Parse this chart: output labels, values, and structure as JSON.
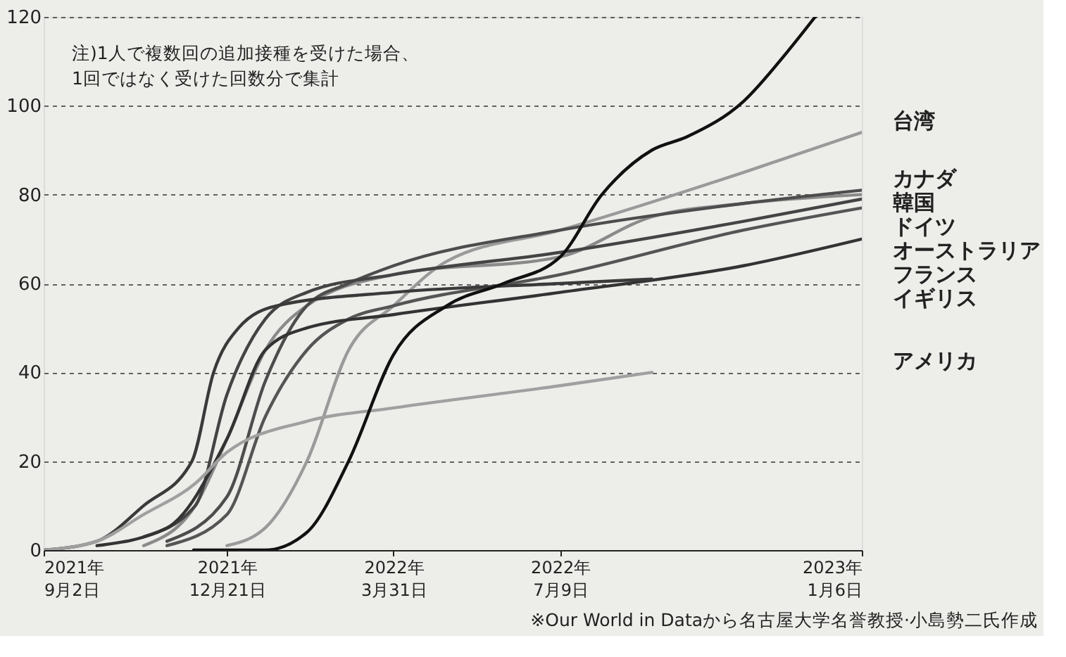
{
  "chart_data": {
    "type": "line",
    "xlim": [
      "2021-09-02",
      "2023-01-06"
    ],
    "xticks": [
      {
        "value": "2021-09-02",
        "label": "2021年\n9月2日"
      },
      {
        "value": "2021-12-21",
        "label": "2021年\n12月21日"
      },
      {
        "value": "2022-03-31",
        "label": "2022年\n3月31日"
      },
      {
        "value": "2022-07-09",
        "label": "2022年\n7月9日"
      },
      {
        "value": "2023-01-06",
        "label": "2023年\n1月6日"
      }
    ],
    "ylim": [
      0,
      120
    ],
    "yticks": [
      0,
      20,
      40,
      60,
      80,
      100,
      120
    ],
    "grid": "y",
    "legend": false,
    "marker": "none",
    "line_style": "solid",
    "annotations": [
      "注)1人で複数回の追加接種を受けた場合、\n1回ではなく受けた回数分で集計",
      "※Our World in Dataから名古屋大学名誉教授·小島勢二氏作成"
    ],
    "series": [
      {
        "name": "台湾",
        "color": "#9a9a9a",
        "x": [
          "2021-12-21",
          "2022-01-13",
          "2022-02-07",
          "2022-03-04",
          "2022-03-31",
          "2022-05-02",
          "2022-07-09",
          "2022-10-27",
          "2023-01-06"
        ],
        "values": [
          1,
          5,
          20,
          45,
          55,
          65,
          72,
          85,
          94
        ]
      },
      {
        "name": "韓国",
        "color": "#8a8a8a",
        "x": [
          "2021-11-01",
          "2021-12-02",
          "2021-12-21",
          "2022-01-13",
          "2022-02-07",
          "2022-03-31",
          "2022-07-09",
          "2022-09-02",
          "2022-10-27",
          "2023-01-06"
        ],
        "values": [
          1,
          10,
          25,
          45,
          55,
          62,
          66,
          75,
          78,
          80
        ]
      },
      {
        "name": "カナダ",
        "color": "#4d4d4d",
        "x": [
          "2021-11-15",
          "2021-12-21",
          "2022-01-13",
          "2022-02-07",
          "2022-03-04",
          "2022-03-31",
          "2022-07-09",
          "2022-10-27",
          "2023-01-06"
        ],
        "values": [
          2,
          12,
          38,
          55,
          60,
          64,
          72,
          78,
          81
        ]
      },
      {
        "name": "ドイツ",
        "color": "#444444",
        "x": [
          "2021-11-01",
          "2021-12-02",
          "2021-12-21",
          "2022-01-13",
          "2022-02-07",
          "2022-03-31",
          "2022-07-09",
          "2022-10-27",
          "2023-01-06"
        ],
        "values": [
          3,
          10,
          35,
          52,
          58,
          62,
          67,
          74,
          79
        ]
      },
      {
        "name": "オーストラリア",
        "color": "#555555",
        "x": [
          "2021-11-15",
          "2021-12-21",
          "2022-01-13",
          "2022-02-07",
          "2022-03-04",
          "2022-03-31",
          "2022-07-09",
          "2022-10-27",
          "2023-01-06"
        ],
        "values": [
          1,
          8,
          30,
          45,
          52,
          55,
          62,
          72,
          77
        ]
      },
      {
        "name": "フランス",
        "color": "#333333",
        "x": [
          "2021-10-04",
          "2021-11-15",
          "2021-12-21",
          "2022-01-13",
          "2022-02-07",
          "2022-03-31",
          "2022-07-09",
          "2022-10-27",
          "2023-01-06"
        ],
        "values": [
          1,
          5,
          25,
          45,
          50,
          53,
          58,
          64,
          70
        ]
      },
      {
        "name": "イギリス",
        "color": "#3a3a3a",
        "x": [
          "2021-09-02",
          "2021-10-04",
          "2021-11-01",
          "2021-11-30",
          "2021-12-13",
          "2021-12-28",
          "2022-01-20",
          "2022-03-31",
          "2022-07-09",
          "2022-09-02"
        ],
        "values": [
          0,
          2,
          10,
          20,
          40,
          50,
          55,
          58,
          60,
          61
        ]
      },
      {
        "name": "アメリカ",
        "color": "#a0a0a0",
        "x": [
          "2021-09-02",
          "2021-10-04",
          "2021-11-01",
          "2021-12-02",
          "2021-12-21",
          "2022-02-07",
          "2022-03-31",
          "2022-07-09",
          "2022-09-02"
        ],
        "values": [
          0,
          2,
          8,
          15,
          22,
          29,
          32,
          37,
          40
        ]
      },
      {
        "color": "#111111",
        "x": [
          "2021-12-01",
          "2022-01-13",
          "2022-02-07",
          "2022-03-04",
          "2022-03-31",
          "2022-05-02",
          "2022-06-05",
          "2022-07-09",
          "2022-08-03",
          "2022-09-02",
          "2022-09-23",
          "2022-10-27",
          "2022-11-22",
          "2022-12-09"
        ],
        "values": [
          0,
          0,
          4,
          20,
          44,
          55,
          60,
          66,
          80,
          90,
          93,
          101,
          112,
          120
        ]
      }
    ]
  }
}
